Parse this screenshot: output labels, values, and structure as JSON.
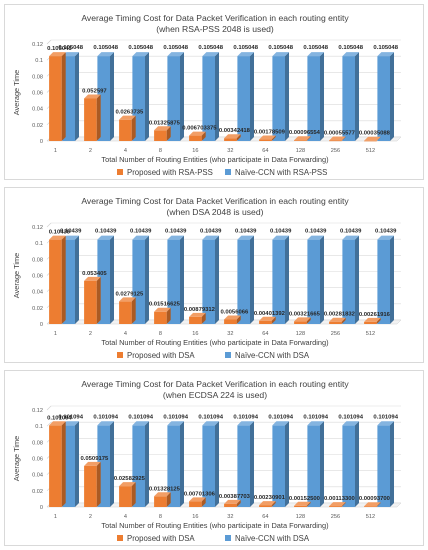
{
  "chart_data": [
    {
      "type": "bar",
      "title": "Average Timing Cost for Data Packet Verification in each routing entity",
      "subtitle": "(when RSA-PSS 2048 is used)",
      "xlabel": "Total Number of Routing Entities (who participate in Data Forwarding)",
      "ylabel": "Average Time",
      "ylim": [
        0,
        0.12
      ],
      "yticks": [
        "0",
        "0.02",
        "0.04",
        "0.06",
        "0.08",
        "0.1",
        "0.12"
      ],
      "grid": true,
      "legend_position": "bottom",
      "categories": [
        "1",
        "2",
        "4",
        "8",
        "16",
        "32",
        "64",
        "128",
        "256",
        "512"
      ],
      "series": [
        {
          "name": "Proposed with RSA-PSS",
          "color": "#ed7d31",
          "values": [
            0.105048,
            0.052597,
            0.0263735,
            0.01325875,
            0.006703375,
            0.0034242,
            0.00178509,
            0.000965544,
            0.00055577,
            0.00035088
          ],
          "labels": [
            "0.105048",
            "0.052597",
            "0.0263735",
            "0.01325875",
            "0.006703375",
            "0.00342418",
            "0.00178509",
            "0.00096554",
            "0.00055577",
            "0.00035088"
          ]
        },
        {
          "name": "Naïve-CCN with RSA-PSS",
          "color": "#5b9bd5",
          "values": [
            0.105048,
            0.105048,
            0.105048,
            0.105048,
            0.105048,
            0.105048,
            0.105048,
            0.105048,
            0.105048,
            0.105048
          ],
          "labels": [
            "0.105048",
            "0.105048",
            "0.105048",
            "0.105048",
            "0.105048",
            "0.105048",
            "0.105048",
            "0.105048",
            "0.105048",
            "0.105048"
          ]
        }
      ]
    },
    {
      "type": "bar",
      "title": "Average Timing Cost for Data Packet Verification in each routing entity",
      "subtitle": "(when DSA 2048 is used)",
      "xlabel": "Total Number of Routing Entities (who participate in Data Forwarding)",
      "ylabel": "Average Time",
      "ylim": [
        0,
        0.12
      ],
      "yticks": [
        "0",
        "0.02",
        "0.04",
        "0.06",
        "0.08",
        "0.1",
        "0.12"
      ],
      "grid": true,
      "legend_position": "bottom",
      "categories": [
        "1",
        "2",
        "4",
        "8",
        "16",
        "32",
        "64",
        "128",
        "256",
        "512"
      ],
      "series": [
        {
          "name": "Proposed with DSA",
          "color": "#ed7d31",
          "values": [
            0.10439,
            0.053405,
            0.0279125,
            0.01516625,
            0.008793125,
            0.0056066,
            0.00401392,
            0.00321665,
            0.00281832,
            0.00261916
          ],
          "labels": [
            "0.10439",
            "0.053405",
            "0.0279125",
            "0.01516625",
            "0.00879312",
            "0.0056066",
            "0.00401392",
            "0.00321665",
            "0.00281832",
            "0.00261916"
          ]
        },
        {
          "name": "Naïve-CCN with DSA",
          "color": "#5b9bd5",
          "values": [
            0.10439,
            0.10439,
            0.10439,
            0.10439,
            0.10439,
            0.10439,
            0.10439,
            0.10439,
            0.10439,
            0.10439
          ],
          "labels": [
            "0.10439",
            "0.10439",
            "0.10439",
            "0.10439",
            "0.10439",
            "0.10439",
            "0.10439",
            "0.10439",
            "0.10439",
            "0.10439"
          ]
        }
      ]
    },
    {
      "type": "bar",
      "title": "Average Timing Cost for Data Packet Verification in each routing entity",
      "subtitle": "(when ECDSA 224 is used)",
      "xlabel": "Total Number of Routing Entities (who participate in Data Forwarding)",
      "ylabel": "Average Time",
      "ylim": [
        0,
        0.12
      ],
      "yticks": [
        "0",
        "0.02",
        "0.04",
        "0.06",
        "0.08",
        "0.1",
        "0.12"
      ],
      "grid": true,
      "legend_position": "bottom",
      "categories": [
        "1",
        "2",
        "4",
        "8",
        "16",
        "32",
        "64",
        "128",
        "256",
        "512"
      ],
      "series": [
        {
          "name": "Proposed with DSA",
          "color": "#ed7d31",
          "values": [
            0.101094,
            0.0509175,
            0.02582925,
            0.01328125,
            0.00701306,
            0.00387703,
            0.00230901,
            0.001525,
            0.001133,
            0.000937
          ],
          "labels": [
            "0.101094",
            "0.0509175",
            "0.02582925",
            "0.01328125",
            "0.00701306",
            "0.00387703",
            "0.00230901",
            "0.00152500",
            "0.00113300",
            "0.00093700"
          ]
        },
        {
          "name": "Naïve-CCN with DSA",
          "color": "#5b9bd5",
          "values": [
            0.101094,
            0.101094,
            0.101094,
            0.101094,
            0.101094,
            0.101094,
            0.101094,
            0.101094,
            0.101094,
            0.101094
          ],
          "labels": [
            "0.101094",
            "0.101094",
            "0.101094",
            "0.101094",
            "0.101094",
            "0.101094",
            "0.101094",
            "0.101094",
            "0.101094",
            "0.101094"
          ]
        }
      ]
    }
  ]
}
